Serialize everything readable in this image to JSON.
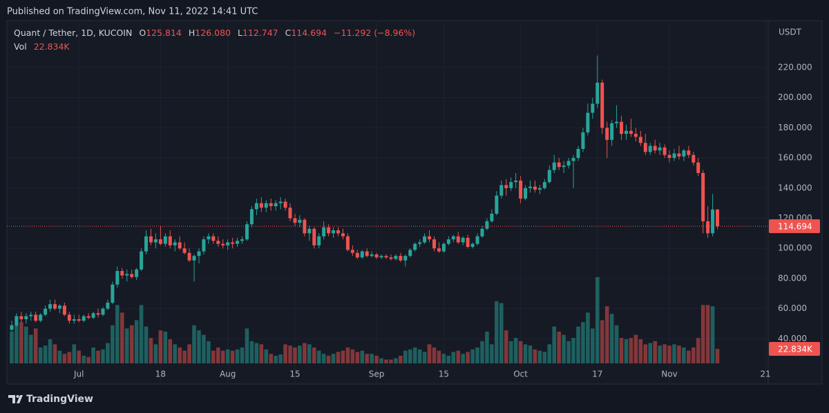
{
  "published": "Published on TradingView.com, Nov 11, 2022 14:41 UTC",
  "footer": {
    "brand": "TradingView"
  },
  "chart_data": {
    "type": "candlestick",
    "legend": {
      "symbol": "Quant / Tether, 1D, KUCOIN",
      "o_label": "O",
      "o": "125.814",
      "h_label": "H",
      "h": "126.080",
      "l_label": "L",
      "l": "112.747",
      "c_label": "C",
      "c": "114.694",
      "change": "−11.292 (−8.96%)"
    },
    "y_axis_label": "USDT",
    "up_color": "#26a69a",
    "down_color": "#ef5350",
    "grid": true,
    "xlim": [
      "2022-06-16",
      "2022-11-21"
    ],
    "xticks": [
      {
        "value": "2022-07-01",
        "label": "Jul"
      },
      {
        "value": "2022-07-18",
        "label": "18"
      },
      {
        "value": "2022-08-01",
        "label": "Aug"
      },
      {
        "value": "2022-08-15",
        "label": "15"
      },
      {
        "value": "2022-09-01",
        "label": "Sep"
      },
      {
        "value": "2022-09-15",
        "label": "15"
      },
      {
        "value": "2022-10-01",
        "label": "Oct"
      },
      {
        "value": "2022-10-17",
        "label": "17"
      },
      {
        "value": "2022-11-01",
        "label": "Nov"
      },
      {
        "value": "2022-11-21",
        "label": "21"
      }
    ],
    "ylim": [
      23.7,
      251.1
    ],
    "yticks": [
      {
        "value": 40,
        "label": "40.000"
      },
      {
        "value": 60,
        "label": "60.000"
      },
      {
        "value": 80,
        "label": "80.000"
      },
      {
        "value": 100,
        "label": "100.000"
      },
      {
        "value": 120,
        "label": "120.000"
      },
      {
        "value": 140,
        "label": "140.000"
      },
      {
        "value": 160,
        "label": "160.000"
      },
      {
        "value": 180,
        "label": "180.000"
      },
      {
        "value": 200,
        "label": "200.000"
      },
      {
        "value": 220,
        "label": "220.000"
      }
    ],
    "y2lim": [
      0,
      540000
    ],
    "last_price": {
      "value": 114.694,
      "label": "114.694"
    },
    "last_volume": {
      "value": 22834,
      "label": "22.834K"
    },
    "x": [
      "2022-06-17",
      "2022-06-18",
      "2022-06-19",
      "2022-06-20",
      "2022-06-21",
      "2022-06-22",
      "2022-06-23",
      "2022-06-24",
      "2022-06-25",
      "2022-06-26",
      "2022-06-27",
      "2022-06-28",
      "2022-06-29",
      "2022-06-30",
      "2022-07-01",
      "2022-07-02",
      "2022-07-03",
      "2022-07-04",
      "2022-07-05",
      "2022-07-06",
      "2022-07-07",
      "2022-07-08",
      "2022-07-09",
      "2022-07-10",
      "2022-07-11",
      "2022-07-12",
      "2022-07-13",
      "2022-07-14",
      "2022-07-15",
      "2022-07-16",
      "2022-07-17",
      "2022-07-18",
      "2022-07-19",
      "2022-07-20",
      "2022-07-21",
      "2022-07-22",
      "2022-07-23",
      "2022-07-24",
      "2022-07-25",
      "2022-07-26",
      "2022-07-27",
      "2022-07-28",
      "2022-07-29",
      "2022-07-30",
      "2022-07-31",
      "2022-08-01",
      "2022-08-02",
      "2022-08-03",
      "2022-08-04",
      "2022-08-05",
      "2022-08-06",
      "2022-08-07",
      "2022-08-08",
      "2022-08-09",
      "2022-08-10",
      "2022-08-11",
      "2022-08-12",
      "2022-08-13",
      "2022-08-14",
      "2022-08-15",
      "2022-08-16",
      "2022-08-17",
      "2022-08-18",
      "2022-08-19",
      "2022-08-20",
      "2022-08-21",
      "2022-08-22",
      "2022-08-23",
      "2022-08-24",
      "2022-08-25",
      "2022-08-26",
      "2022-08-27",
      "2022-08-28",
      "2022-08-29",
      "2022-08-30",
      "2022-08-31",
      "2022-09-01",
      "2022-09-02",
      "2022-09-03",
      "2022-09-04",
      "2022-09-05",
      "2022-09-06",
      "2022-09-07",
      "2022-09-08",
      "2022-09-09",
      "2022-09-10",
      "2022-09-11",
      "2022-09-12",
      "2022-09-13",
      "2022-09-14",
      "2022-09-15",
      "2022-09-16",
      "2022-09-17",
      "2022-09-18",
      "2022-09-19",
      "2022-09-20",
      "2022-09-21",
      "2022-09-22",
      "2022-09-23",
      "2022-09-24",
      "2022-09-25",
      "2022-09-26",
      "2022-09-27",
      "2022-09-28",
      "2022-09-29",
      "2022-09-30",
      "2022-10-01",
      "2022-10-02",
      "2022-10-03",
      "2022-10-04",
      "2022-10-05",
      "2022-10-06",
      "2022-10-07",
      "2022-10-08",
      "2022-10-09",
      "2022-10-10",
      "2022-10-11",
      "2022-10-12",
      "2022-10-13",
      "2022-10-14",
      "2022-10-15",
      "2022-10-16",
      "2022-10-17",
      "2022-10-18",
      "2022-10-19",
      "2022-10-20",
      "2022-10-21",
      "2022-10-22",
      "2022-10-23",
      "2022-10-24",
      "2022-10-25",
      "2022-10-26",
      "2022-10-27",
      "2022-10-28",
      "2022-10-29",
      "2022-10-30",
      "2022-10-31",
      "2022-11-01",
      "2022-11-02",
      "2022-11-03",
      "2022-11-04",
      "2022-11-05",
      "2022-11-06",
      "2022-11-07",
      "2022-11-08",
      "2022-11-09",
      "2022-11-10",
      "2022-11-11"
    ],
    "open": [
      46,
      49,
      55,
      53,
      55,
      56,
      52,
      56,
      60,
      63,
      60,
      62,
      56,
      52,
      53,
      52,
      55,
      54,
      57,
      56,
      60,
      64,
      76,
      85,
      82,
      83,
      81,
      86,
      98,
      108,
      104,
      106,
      103,
      108,
      102,
      104,
      100,
      97,
      92,
      95,
      98,
      106,
      108,
      105,
      103,
      102,
      104,
      103,
      105,
      106,
      116,
      126,
      130,
      127,
      130,
      128,
      130,
      131,
      127,
      120,
      117,
      119,
      110,
      113,
      102,
      108,
      114,
      110,
      112,
      110,
      108,
      99,
      97,
      94,
      98,
      95,
      96,
      94,
      95,
      94,
      93,
      95,
      92,
      95,
      99,
      103,
      104,
      108,
      106,
      100,
      98,
      103,
      106,
      108,
      104,
      107,
      101,
      103,
      108,
      113,
      118,
      123,
      135,
      142,
      140,
      144,
      145,
      133,
      140,
      141,
      139,
      140,
      144,
      152,
      157,
      154,
      155,
      158,
      160,
      166,
      177,
      190,
      196,
      210,
      180,
      172,
      183,
      184,
      176,
      178,
      176,
      174,
      170,
      164,
      168,
      165,
      167,
      162,
      160,
      163,
      161,
      165,
      162,
      157,
      150,
      118,
      110,
      125.814
    ],
    "high": [
      52,
      57,
      58,
      57,
      58,
      58,
      57,
      62,
      66,
      66,
      63,
      64,
      58,
      56,
      56,
      56,
      57,
      58,
      60,
      61,
      66,
      78,
      88,
      87,
      86,
      86,
      87,
      100,
      112,
      113,
      110,
      115,
      110,
      112,
      106,
      108,
      104,
      100,
      96,
      100,
      108,
      110,
      110,
      108,
      106,
      106,
      107,
      107,
      108,
      118,
      128,
      133,
      134,
      132,
      133,
      132,
      134,
      133,
      130,
      123,
      122,
      120,
      115,
      114,
      110,
      118,
      116,
      114,
      114,
      113,
      110,
      102,
      99,
      99,
      100,
      98,
      97,
      96,
      96,
      96,
      96,
      97,
      96,
      100,
      104,
      106,
      110,
      112,
      108,
      104,
      104,
      108,
      109,
      111,
      108,
      109,
      104,
      110,
      115,
      120,
      126,
      138,
      145,
      146,
      147,
      150,
      148,
      142,
      145,
      145,
      142,
      146,
      155,
      162,
      160,
      158,
      160,
      162,
      168,
      180,
      196,
      200,
      228,
      212,
      184,
      185,
      195,
      188,
      182,
      186,
      180,
      178,
      176,
      170,
      172,
      170,
      169,
      165,
      166,
      168,
      166,
      168,
      164,
      160,
      152,
      128,
      136,
      126.08
    ],
    "low": [
      45,
      48,
      51,
      50,
      52,
      51,
      51,
      55,
      58,
      59,
      57,
      55,
      50,
      50,
      51,
      51,
      53,
      53,
      54,
      55,
      59,
      63,
      74,
      80,
      78,
      80,
      79,
      85,
      96,
      102,
      100,
      102,
      101,
      100,
      98,
      99,
      96,
      91,
      78,
      90,
      96,
      103,
      103,
      101,
      100,
      99,
      100,
      101,
      103,
      105,
      114,
      122,
      124,
      124,
      125,
      125,
      126,
      125,
      118,
      115,
      114,
      108,
      105,
      100,
      100,
      106,
      108,
      107,
      108,
      106,
      98,
      95,
      93,
      93,
      94,
      94,
      93,
      93,
      93,
      92,
      92,
      91,
      88,
      94,
      98,
      101,
      103,
      104,
      98,
      97,
      97,
      102,
      104,
      103,
      102,
      100,
      100,
      102,
      107,
      112,
      117,
      122,
      133,
      135,
      138,
      140,
      130,
      132,
      137,
      137,
      136,
      139,
      143,
      150,
      152,
      150,
      153,
      140,
      158,
      164,
      175,
      186,
      193,
      176,
      160,
      168,
      180,
      172,
      172,
      174,
      171,
      168,
      162,
      162,
      163,
      162,
      160,
      157,
      158,
      159,
      158,
      160,
      155,
      148,
      110,
      107,
      108,
      112.747
    ],
    "close": [
      49,
      55,
      53,
      55,
      56,
      52,
      56,
      60,
      63,
      60,
      62,
      56,
      52,
      53,
      52,
      55,
      54,
      57,
      56,
      60,
      64,
      76,
      85,
      82,
      83,
      81,
      86,
      98,
      108,
      104,
      106,
      103,
      108,
      102,
      104,
      100,
      97,
      92,
      95,
      98,
      106,
      108,
      105,
      103,
      102,
      104,
      103,
      105,
      106,
      116,
      126,
      130,
      127,
      130,
      128,
      130,
      131,
      127,
      120,
      117,
      119,
      110,
      113,
      102,
      108,
      114,
      110,
      112,
      110,
      108,
      99,
      97,
      94,
      98,
      95,
      96,
      94,
      95,
      94,
      93,
      95,
      92,
      95,
      99,
      103,
      104,
      108,
      106,
      100,
      98,
      103,
      106,
      108,
      104,
      107,
      101,
      103,
      108,
      113,
      118,
      123,
      135,
      142,
      140,
      144,
      145,
      133,
      140,
      141,
      139,
      140,
      144,
      152,
      157,
      154,
      155,
      158,
      160,
      166,
      177,
      190,
      196,
      210,
      180,
      172,
      183,
      184,
      176,
      178,
      176,
      174,
      170,
      164,
      168,
      165,
      167,
      162,
      160,
      163,
      161,
      165,
      162,
      157,
      150,
      118,
      110,
      125.814,
      114.694
    ],
    "volume": {
      "name": "Vol",
      "axis": "y2",
      "up_color": "rgba(38,166,154,0.5)",
      "down_color": "rgba(239,83,80,0.5)",
      "values": [
        50000,
        62000,
        65000,
        58000,
        45000,
        55000,
        25000,
        28000,
        38000,
        30000,
        20000,
        15000,
        18000,
        30000,
        20000,
        12000,
        10000,
        25000,
        20000,
        22000,
        32000,
        60000,
        92000,
        80000,
        55000,
        60000,
        68000,
        92000,
        58000,
        40000,
        30000,
        52000,
        50000,
        38000,
        30000,
        25000,
        20000,
        30000,
        60000,
        52000,
        45000,
        35000,
        20000,
        25000,
        20000,
        22000,
        20000,
        22000,
        25000,
        55000,
        35000,
        32000,
        30000,
        22000,
        15000,
        12000,
        14000,
        30000,
        28000,
        25000,
        28000,
        32000,
        30000,
        25000,
        20000,
        15000,
        12000,
        15000,
        18000,
        20000,
        25000,
        22000,
        18000,
        20000,
        15000,
        15000,
        12000,
        8000,
        6000,
        6000,
        8000,
        12000,
        20000,
        22000,
        25000,
        22000,
        18000,
        30000,
        25000,
        20000,
        15000,
        12000,
        18000,
        20000,
        15000,
        18000,
        22000,
        25000,
        35000,
        50000,
        30000,
        98000,
        95000,
        52000,
        35000,
        40000,
        35000,
        30000,
        28000,
        22000,
        20000,
        18000,
        30000,
        58000,
        50000,
        45000,
        35000,
        40000,
        58000,
        65000,
        80000,
        55000,
        136000,
        68000,
        90000,
        78000,
        60000,
        40000,
        38000,
        40000,
        45000,
        38000,
        30000,
        32000,
        35000,
        28000,
        30000,
        28000,
        30000,
        28000,
        25000,
        20000,
        25000,
        40000,
        92000,
        92000,
        90000,
        22834
      ]
    }
  }
}
